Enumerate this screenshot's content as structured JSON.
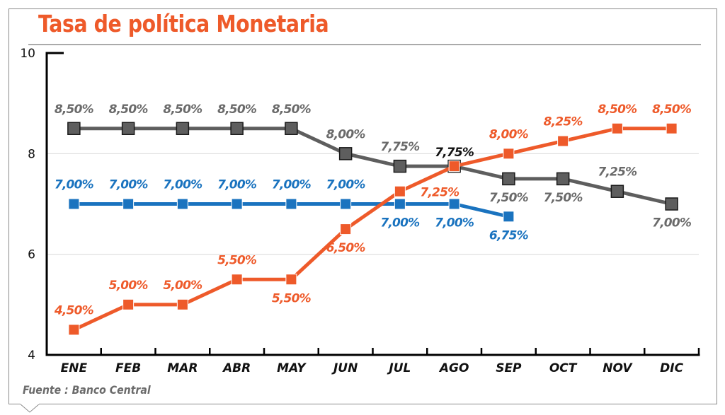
{
  "title": "Tasa de política Monetaria",
  "source": "Fuente : Banco Central",
  "colors": {
    "title": "#ee5a2a",
    "gray_series": "#5e5e5e",
    "blue_series": "#1a73bf",
    "orange_series": "#ee5a2a",
    "axis": "#000000",
    "grid": "#d9d9d9",
    "source": "#6b6b6b"
  },
  "chart_data": {
    "type": "line",
    "title": "Tasa de política Monetaria",
    "xlabel": "",
    "ylabel": "",
    "categories": [
      "ENE",
      "FEB",
      "MAR",
      "ABR",
      "MAY",
      "JUN",
      "JUL",
      "AGO",
      "SEP",
      "OCT",
      "NOV",
      "DIC"
    ],
    "ylim": [
      4,
      10
    ],
    "yticks": [
      4,
      6,
      8,
      10
    ],
    "grid": true,
    "legend": "none",
    "series": [
      {
        "name": "gray",
        "color": "#5e5e5e",
        "marker": "square-outlined",
        "values": [
          8.5,
          8.5,
          8.5,
          8.5,
          8.5,
          8.0,
          7.75,
          7.75,
          7.5,
          7.5,
          7.25,
          7.0
        ],
        "labels": [
          "8,50%",
          "8,50%",
          "8,50%",
          "8,50%",
          "8,50%",
          "8,00%",
          "7,75%",
          "7,75%",
          "7,50%",
          "7,50%",
          "7,25%",
          "7,00%"
        ],
        "label_pos": [
          "above",
          "above",
          "above",
          "above",
          "above",
          "above",
          "above",
          "above",
          "below",
          "below",
          "above",
          "below"
        ]
      },
      {
        "name": "blue",
        "color": "#1a73bf",
        "marker": "square",
        "values": [
          7.0,
          7.0,
          7.0,
          7.0,
          7.0,
          7.0,
          7.0,
          7.0,
          6.75
        ],
        "labels": [
          "7,00%",
          "7,00%",
          "7,00%",
          "7,00%",
          "7,00%",
          "7,00%",
          "7,00%",
          "7,00%",
          "6,75%"
        ],
        "label_pos": [
          "above",
          "above",
          "above",
          "above",
          "above",
          "above",
          "below",
          "below",
          "below"
        ]
      },
      {
        "name": "orange",
        "color": "#ee5a2a",
        "marker": "square",
        "values": [
          4.5,
          5.0,
          5.0,
          5.5,
          5.5,
          6.5,
          7.25,
          7.75,
          8.0,
          8.25,
          8.5,
          8.5
        ],
        "labels": [
          "4,50%",
          "5,00%",
          "5,00%",
          "5,50%",
          "5,50%",
          "6,50%",
          "7,25%",
          "7,75%",
          "8,00%",
          "8,25%",
          "8,50%",
          "8,50%"
        ],
        "label_pos": [
          "above",
          "above",
          "above",
          "above",
          "below",
          "below",
          "below-right",
          "above-black",
          "above",
          "above",
          "above",
          "above"
        ]
      }
    ]
  }
}
